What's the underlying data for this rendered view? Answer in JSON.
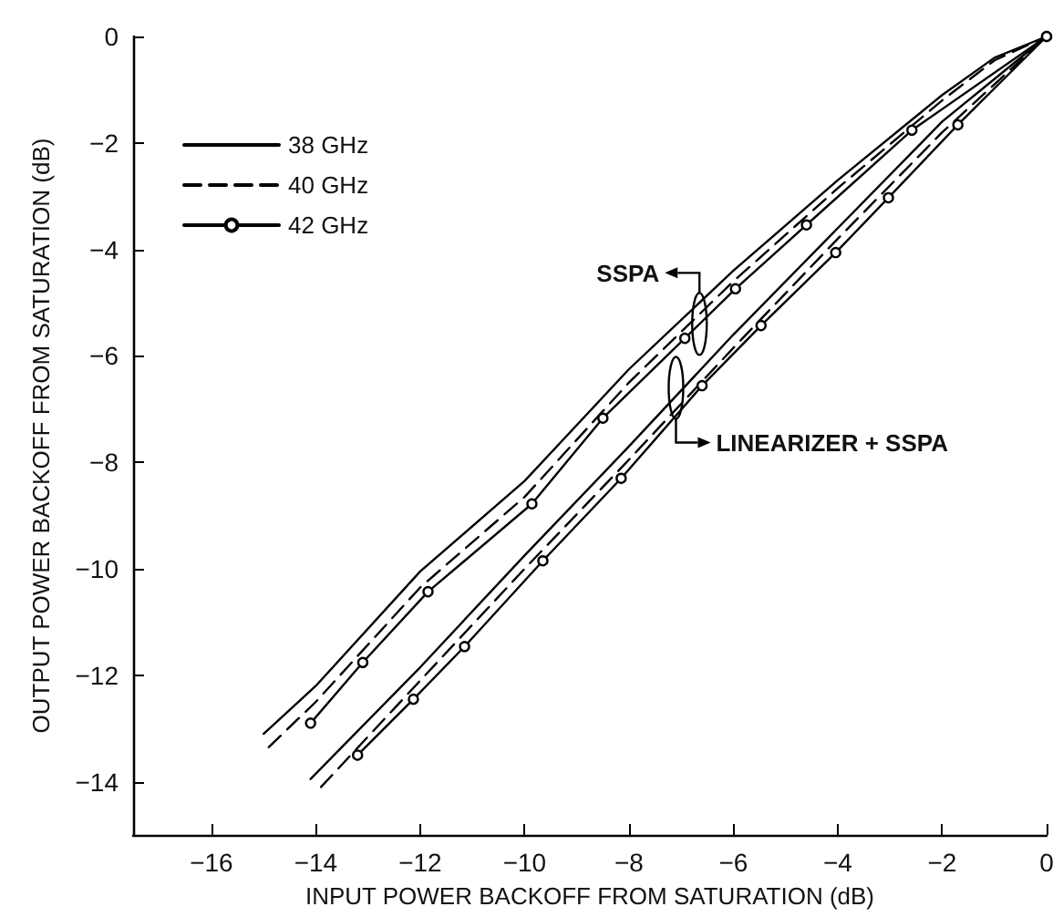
{
  "chart_data": {
    "type": "line",
    "xlabel": "INPUT POWER BACKOFF FROM SATURATION (dB)",
    "ylabel": "OUTPUT POWER BACKOFF FROM SATURATION (dB)",
    "xlim": [
      -17.5,
      0
    ],
    "xticks": [
      -16,
      -14,
      -12,
      -10,
      -8,
      -6,
      -4,
      -2,
      0
    ],
    "ylim": [
      -15,
      0
    ],
    "yticks": [
      -14,
      -12,
      -10,
      -8,
      -6,
      -4,
      -2,
      0
    ],
    "grid": false,
    "legend": "top left",
    "series": [
      {
        "name": "38 GHz",
        "color": "#000000",
        "line_style": "solid",
        "marker": "none",
        "x": [
          -15,
          -14,
          -12,
          -10,
          -8,
          -6,
          -4,
          -2,
          -1,
          0
        ],
        "values": [
          -13.1,
          -12.2,
          -10.05,
          -8.35,
          -6.25,
          -4.4,
          -2.7,
          -1.1,
          -0.4,
          0
        ]
      },
      {
        "name": "40 GHz",
        "color": "#000000",
        "line_style": "dashed",
        "marker": "none",
        "x": [
          -14.9,
          -14,
          -12,
          -10,
          -8,
          -6,
          -4,
          -2,
          -1,
          0
        ],
        "values": [
          -13.35,
          -12.5,
          -10.35,
          -8.65,
          -6.5,
          -4.6,
          -2.85,
          -1.2,
          -0.45,
          0
        ]
      },
      {
        "name": "42 GHz",
        "color": "#000000",
        "line_style": "solid",
        "marker": "circle",
        "x": [
          -14.1,
          -13.1,
          -11.85,
          -9.86,
          -8.5,
          -6.93,
          -5.96,
          -4.6,
          -2.58,
          0
        ],
        "values": [
          -12.9,
          -11.76,
          -10.43,
          -8.78,
          -7.17,
          -5.67,
          -4.74,
          -3.54,
          -1.76,
          0
        ]
      },
      {
        "color": "#000000",
        "line_style": "solid",
        "marker": "none",
        "x": [
          -14.1,
          -12,
          -10,
          -8,
          -6,
          -4,
          -2,
          -1,
          0
        ],
        "values": [
          -13.95,
          -11.85,
          -9.75,
          -7.7,
          -5.6,
          -3.6,
          -1.6,
          -0.8,
          0
        ]
      },
      {
        "color": "#000000",
        "line_style": "dashed",
        "marker": "none",
        "x": [
          -13.9,
          -12,
          -10,
          -8,
          -6,
          -4,
          -2,
          -1,
          0
        ],
        "values": [
          -14.1,
          -12.1,
          -10.0,
          -7.95,
          -5.85,
          -3.8,
          -1.8,
          -0.9,
          0
        ]
      },
      {
        "color": "#000000",
        "line_style": "solid",
        "marker": "circle",
        "x": [
          -13.2,
          -12.13,
          -11.15,
          -9.65,
          -8.15,
          -6.6,
          -5.47,
          -4.04,
          -3.03,
          -1.7,
          0
        ],
        "values": [
          -13.5,
          -12.45,
          -11.46,
          -9.85,
          -8.3,
          -6.56,
          -5.43,
          -4.06,
          -3.03,
          -1.66,
          0
        ]
      }
    ],
    "annotations": [
      {
        "text": "SSPA",
        "x": -6.65,
        "y": -5.4
      },
      {
        "text": "LINEARIZER + SSPA",
        "x": -7.1,
        "y": -6.6
      }
    ]
  }
}
